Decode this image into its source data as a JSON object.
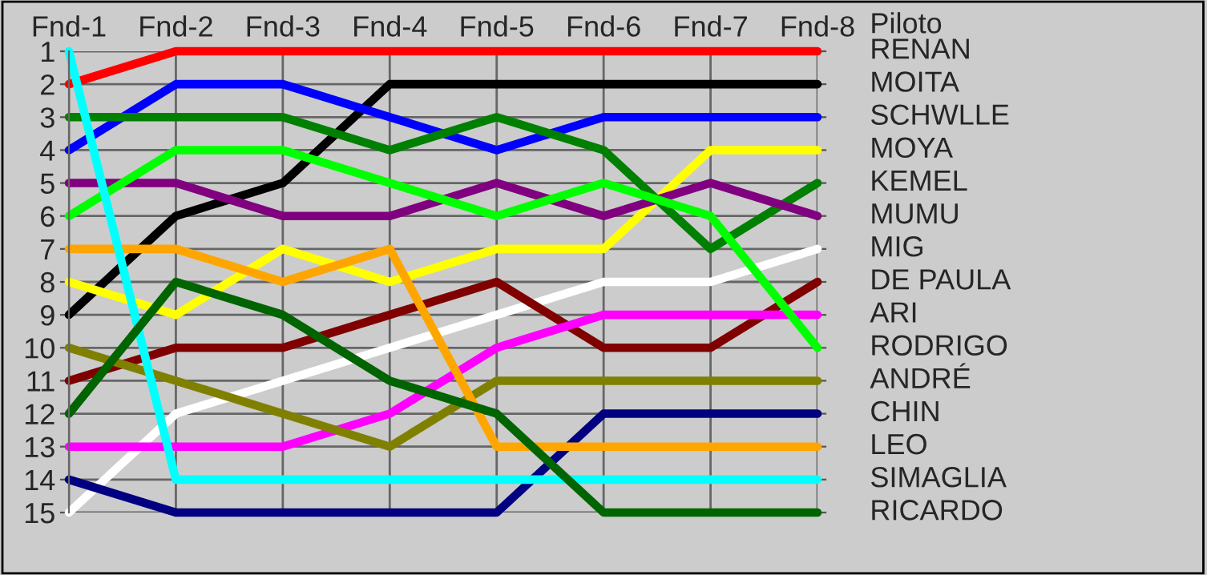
{
  "chart_data": {
    "type": "line",
    "categories": [
      "Fnd-1",
      "Fnd-2",
      "Fnd-3",
      "Fnd-4",
      "Fnd-5",
      "Fnd-6",
      "Fnd-7",
      "Fnd-8"
    ],
    "ylim": [
      15,
      1
    ],
    "yticks": [
      1,
      2,
      3,
      4,
      5,
      6,
      7,
      8,
      9,
      10,
      11,
      12,
      13,
      14,
      15
    ],
    "grid": true,
    "legend_title": "Piloto",
    "marker": "none",
    "line_style": "solid",
    "series": [
      {
        "name": "RENAN",
        "color": "#ff0000",
        "values": [
          2,
          1,
          1,
          1,
          1,
          1,
          1,
          1
        ]
      },
      {
        "name": "MOITA",
        "color": "#000000",
        "values": [
          9,
          6,
          5,
          2,
          2,
          2,
          2,
          2
        ]
      },
      {
        "name": "SCHWLLE",
        "color": "#0000ff",
        "values": [
          4,
          2,
          2,
          3,
          4,
          3,
          3,
          3
        ]
      },
      {
        "name": "MOYA",
        "color": "#ffff00",
        "values": [
          8,
          9,
          7,
          8,
          7,
          7,
          4,
          4
        ]
      },
      {
        "name": "KEMEL",
        "color": "#008000",
        "values": [
          3,
          3,
          3,
          4,
          3,
          4,
          7,
          5
        ]
      },
      {
        "name": "MUMU",
        "color": "#800080",
        "values": [
          5,
          5,
          6,
          6,
          5,
          6,
          5,
          6
        ]
      },
      {
        "name": "MIG",
        "color": "#ffffff",
        "values": [
          15,
          12,
          11,
          10,
          9,
          8,
          8,
          7
        ]
      },
      {
        "name": "DE PAULA",
        "color": "#800000",
        "values": [
          11,
          10,
          10,
          9,
          8,
          10,
          10,
          8
        ]
      },
      {
        "name": "ARI",
        "color": "#ff00ff",
        "values": [
          13,
          13,
          13,
          12,
          10,
          9,
          9,
          9
        ]
      },
      {
        "name": "RODRIGO",
        "color": "#00ff00",
        "values": [
          6,
          4,
          4,
          5,
          6,
          5,
          6,
          10
        ]
      },
      {
        "name": "ANDRÉ",
        "color": "#808000",
        "values": [
          10,
          11,
          12,
          13,
          11,
          11,
          11,
          11
        ]
      },
      {
        "name": "CHIN",
        "color": "#000080",
        "values": [
          14,
          15,
          15,
          15,
          15,
          12,
          12,
          12
        ]
      },
      {
        "name": "LEO",
        "color": "#ffa500",
        "values": [
          7,
          7,
          8,
          7,
          13,
          13,
          13,
          13
        ]
      },
      {
        "name": "SIMAGLIA",
        "color": "#00ffff",
        "values": [
          1,
          14,
          14,
          14,
          14,
          14,
          14,
          14
        ]
      },
      {
        "name": "RICARDO",
        "color": "#006400",
        "values": [
          12,
          8,
          9,
          11,
          12,
          15,
          15,
          15
        ]
      }
    ]
  }
}
